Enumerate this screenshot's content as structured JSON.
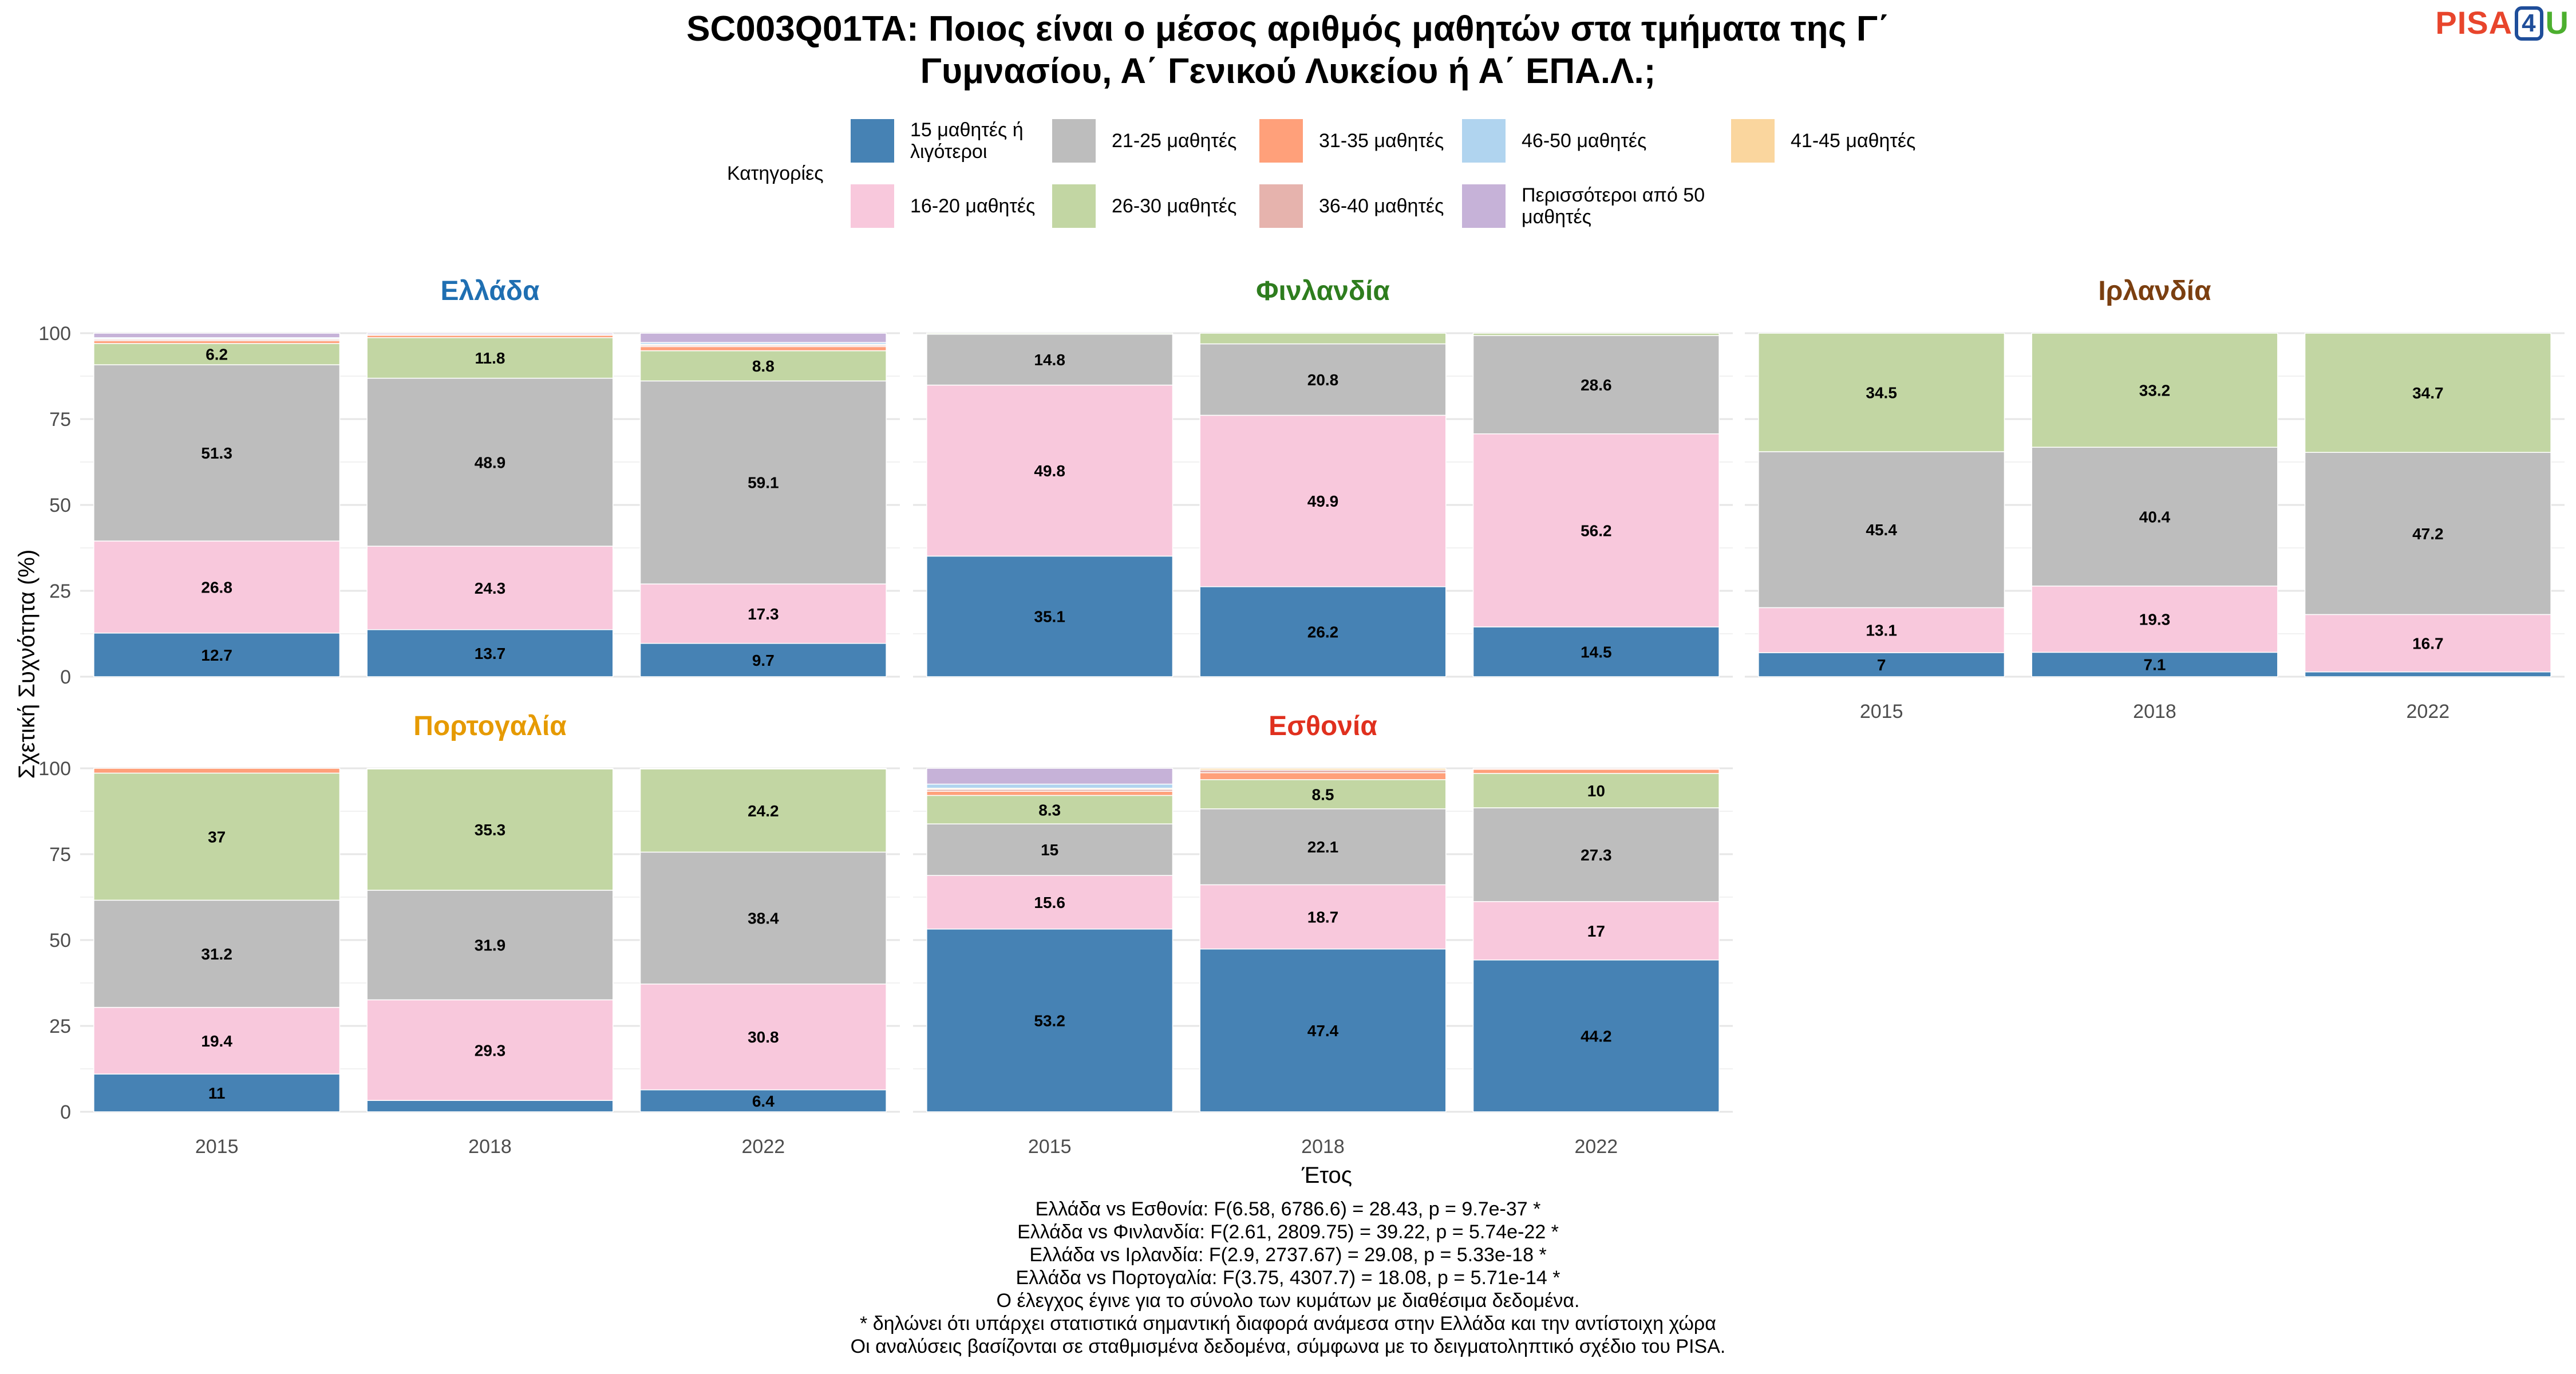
{
  "title": {
    "line1": "SC003Q01TA: Ποιος είναι ο μέσος αριθμός μαθητών στα τμήματα της Γ΄",
    "line2": "Γυμνασίου, Α΄ Γενικού Λυκείου ή Α΄ ΕΠΑ.Λ.;"
  },
  "logo": {
    "part1": "PISA",
    "part2": "4",
    "part3": "U"
  },
  "legend": {
    "title": "Κατηγορίες",
    "items": [
      {
        "label": "15 μαθητές ή λιγότεροι",
        "color": "#4682b4"
      },
      {
        "label": "16-20 μαθητές",
        "color": "#f8c8dc"
      },
      {
        "label": "21-25 μαθητές",
        "color": "#bdbdbd"
      },
      {
        "label": "26-30 μαθητές",
        "color": "#c2d6a3"
      },
      {
        "label": "31-35 μαθητές",
        "color": "#ffa07a"
      },
      {
        "label": "36-40 μαθητές",
        "color": "#e6b3ad"
      },
      {
        "label": "46-50 μαθητές",
        "color": "#b0d4ef"
      },
      {
        "label": "Περισσότεροι από 50 μαθητές",
        "color": "#c6b2d8"
      },
      {
        "label": "41-45 μαθητές",
        "color": "#fad69e"
      }
    ]
  },
  "chart_data": {
    "type": "bar",
    "stacked": true,
    "xlabel": "Έτος",
    "ylabel": "Σχετική Συχνότητα (%)",
    "ylim": [
      0,
      100
    ],
    "yticks": [
      0,
      25,
      50,
      75,
      100
    ],
    "years": [
      "2015",
      "2018",
      "2022"
    ],
    "category_order": [
      "15 μαθητές ή λιγότεροι",
      "16-20 μαθητές",
      "21-25 μαθητές",
      "26-30 μαθητές",
      "31-35 μαθητές",
      "36-40 μαθητές",
      "41-45 μαθητές",
      "46-50 μαθητές",
      "Περισσότεροι από 50 μαθητές"
    ],
    "panels": [
      {
        "country": "Ελλάδα",
        "title_color": "#1f6fb2",
        "bars": [
          {
            "year": "2015",
            "values": [
              12.7,
              26.8,
              51.3,
              6.2,
              0.8,
              0.4,
              0.2,
              0.3,
              1.3
            ],
            "labels": [
              "12.7",
              "26.8",
              "51.3",
              "6.2"
            ]
          },
          {
            "year": "2018",
            "values": [
              13.7,
              24.3,
              48.9,
              11.8,
              0.7,
              0.2,
              0,
              0,
              0.4
            ],
            "labels": [
              "13.7",
              "24.3",
              "48.9",
              "11.8"
            ]
          },
          {
            "year": "2022",
            "values": [
              9.7,
              17.3,
              59.1,
              8.8,
              1.2,
              0.4,
              0.3,
              0.5,
              2.7
            ],
            "labels": [
              "9.7",
              "17.3",
              "59.1",
              "8.8"
            ]
          }
        ]
      },
      {
        "country": "Φινλανδία",
        "title_color": "#2e7d1e",
        "bars": [
          {
            "year": "2015",
            "values": [
              35.1,
              49.8,
              14.8,
              0.3,
              0,
              0,
              0,
              0,
              0
            ],
            "labels": [
              "35.1",
              "49.8",
              "14.8"
            ]
          },
          {
            "year": "2018",
            "values": [
              26.2,
              49.9,
              20.8,
              3.1,
              0,
              0,
              0,
              0,
              0
            ],
            "labels": [
              "26.2",
              "49.9",
              "20.8"
            ]
          },
          {
            "year": "2022",
            "values": [
              14.5,
              56.2,
              28.6,
              0.7,
              0,
              0,
              0,
              0,
              0
            ],
            "labels": [
              "14.5",
              "56.2",
              "28.6"
            ]
          }
        ]
      },
      {
        "country": "Ιρλανδία",
        "title_color": "#7b3f10",
        "bars": [
          {
            "year": "2015",
            "values": [
              7,
              13.1,
              45.4,
              34.5,
              0,
              0,
              0,
              0,
              0
            ],
            "labels": [
              "7",
              "13.1",
              "45.4",
              "34.5"
            ]
          },
          {
            "year": "2018",
            "values": [
              7.1,
              19.3,
              40.4,
              33.2,
              0,
              0,
              0,
              0,
              0
            ],
            "labels": [
              "7.1",
              "19.3",
              "40.4",
              "33.2"
            ]
          },
          {
            "year": "2022",
            "values": [
              1.4,
              16.7,
              47.2,
              34.7,
              0,
              0,
              0,
              0,
              0
            ],
            "labels": [
              "",
              "16.7",
              "47.2",
              "34.7"
            ]
          }
        ]
      },
      {
        "country": "Πορτογαλία",
        "title_color": "#e69a00",
        "bars": [
          {
            "year": "2015",
            "values": [
              11,
              19.4,
              31.2,
              37,
              1.4,
              0,
              0,
              0,
              0
            ],
            "labels": [
              "11",
              "19.4",
              "31.2",
              "37"
            ]
          },
          {
            "year": "2018",
            "values": [
              3.3,
              29.3,
              31.9,
              35.3,
              0.2,
              0,
              0,
              0,
              0
            ],
            "labels": [
              "",
              "29.3",
              "31.9",
              "35.3"
            ]
          },
          {
            "year": "2022",
            "values": [
              6.4,
              30.8,
              38.4,
              24.2,
              0.2,
              0,
              0,
              0,
              0
            ],
            "labels": [
              "6.4",
              "30.8",
              "38.4",
              "24.2"
            ]
          }
        ]
      },
      {
        "country": "Εσθονία",
        "title_color": "#e0301e",
        "bars": [
          {
            "year": "2015",
            "values": [
              53.2,
              15.6,
              15,
              8.3,
              1.2,
              0.6,
              0.3,
              1.2,
              4.6
            ],
            "labels": [
              "53.2",
              "15.6",
              "15",
              "8.3"
            ]
          },
          {
            "year": "2018",
            "values": [
              47.4,
              18.7,
              22.1,
              8.5,
              2,
              0.8,
              0.5,
              0,
              0
            ],
            "labels": [
              "47.4",
              "18.7",
              "22.1",
              "8.5"
            ]
          },
          {
            "year": "2022",
            "values": [
              44.2,
              17,
              27.3,
              10,
              1.2,
              0.3,
              0,
              0,
              0
            ],
            "labels": [
              "44.2",
              "17",
              "27.3",
              "10"
            ]
          }
        ]
      }
    ]
  },
  "notes": [
    "Ελλάδα vs Εσθονία: F(6.58, 6786.6) = 28.43, p = 9.7e-37 *",
    "Ελλάδα vs Φινλανδία: F(2.61, 2809.75) = 39.22, p = 5.74e-22 *",
    "Ελλάδα vs Ιρλανδία: F(2.9, 2737.67) = 29.08, p = 5.33e-18 *",
    "Ελλάδα vs Πορτογαλία: F(3.75, 4307.7) = 18.08, p = 5.71e-14 *",
    "Ο έλεγχος έγινε για το σύνολο των κυμάτων με διαθέσιμα δεδομένα.",
    "* δηλώνει ότι υπάρχει στατιστικά σημαντική διαφορά ανάμεσα στην Ελλάδα και την αντίστοιχη χώρα",
    "Οι αναλύσεις βασίζονται σε σταθμισμένα δεδομένα, σύμφωνα με το δειγματοληπτικό σχέδιο του PISA."
  ]
}
